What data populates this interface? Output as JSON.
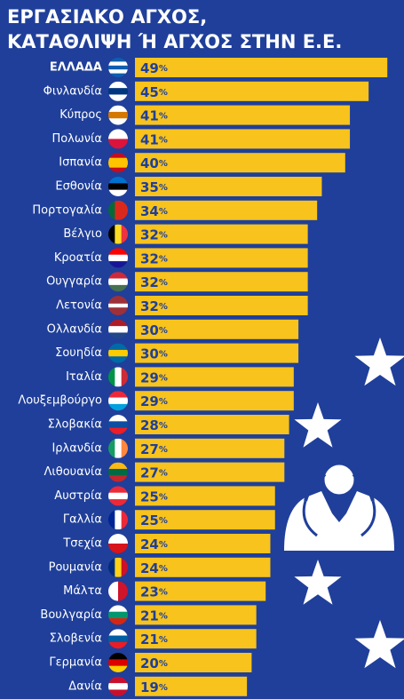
{
  "chart_data": {
    "type": "bar",
    "orientation": "horizontal",
    "title": [
      "ΕΡΓΑΣΙΑΚΟ ΑΓΧΟΣ,",
      "ΚΑΤΑΘΛΙΨΗ Ή ΑΓΧΟΣ ΣΤΗΝ Ε.Ε."
    ],
    "categories": [
      "ΕΛΛΑΔΑ",
      "Φινλανδία",
      "Κύπρος",
      "Πολωνία",
      "Ισπανία",
      "Εσθονία",
      "Πορτογαλία",
      "Βέλγιο",
      "Κροατία",
      "Ουγγαρία",
      "Λετονία",
      "Ολλανδία",
      "Σουηδία",
      "Ιταλία",
      "Λουξεμβούργο",
      "Σλοβακία",
      "Ιρλανδία",
      "Λιθουανία",
      "Αυστρία",
      "Γαλλία",
      "Τσεχία",
      "Ρουμανία",
      "Μάλτα",
      "Βουλγαρία",
      "Σλοβενία",
      "Γερμανία",
      "Δανία"
    ],
    "values": [
      49,
      45,
      41,
      41,
      40,
      35,
      34,
      32,
      32,
      32,
      32,
      30,
      30,
      29,
      29,
      28,
      27,
      27,
      25,
      25,
      24,
      24,
      23,
      21,
      21,
      20,
      19
    ],
    "value_labels": [
      "49%",
      "45%",
      "41%",
      "41%",
      "40%",
      "35%",
      "34%",
      "32%",
      "32%",
      "32%",
      "32%",
      "30%",
      "30%",
      "29%",
      "29%",
      "28%",
      "27%",
      "27%",
      "25%",
      "25%",
      "24%",
      "24%",
      "23%",
      "21%",
      "21%",
      "20%",
      "19%"
    ],
    "color": "#f7c31c"
  }
}
